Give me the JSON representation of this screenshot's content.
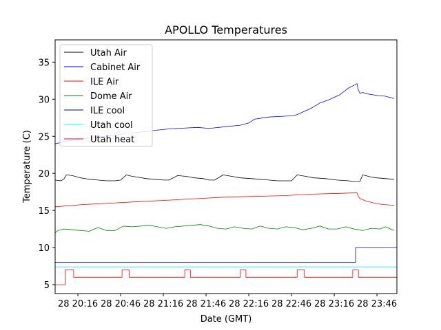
{
  "chart_data": {
    "type": "line",
    "title": "APOLLO Temperatures",
    "xlabel": "Date (GMT)",
    "ylabel": "Temperature (C)",
    "xlim": [
      0,
      240
    ],
    "ylim": [
      3.8,
      38.0
    ],
    "x_unit": "minutes since 28 20:00 GMT",
    "x_ticks": [
      {
        "value": 16,
        "label": "28 20:16"
      },
      {
        "value": 46,
        "label": "28 20:46"
      },
      {
        "value": 76,
        "label": "28 21:16"
      },
      {
        "value": 106,
        "label": "28 21:46"
      },
      {
        "value": 136,
        "label": "28 22:16"
      },
      {
        "value": 166,
        "label": "28 22:46"
      },
      {
        "value": 196,
        "label": "28 23:16"
      },
      {
        "value": 226,
        "label": "28 23:46"
      }
    ],
    "y_ticks": [
      {
        "value": 5,
        "label": "5"
      },
      {
        "value": 10,
        "label": "10"
      },
      {
        "value": 15,
        "label": "15"
      },
      {
        "value": 20,
        "label": "20"
      },
      {
        "value": 25,
        "label": "25"
      },
      {
        "value": 30,
        "label": "30"
      },
      {
        "value": 35,
        "label": "35"
      }
    ],
    "legend_position": "top-left",
    "series": [
      {
        "name": "Utah Air",
        "color": "#000000",
        "x": [
          0,
          4,
          6,
          8,
          12,
          18,
          24,
          30,
          36,
          42,
          46,
          50,
          54,
          58,
          64,
          70,
          76,
          80,
          86,
          92,
          98,
          104,
          108,
          112,
          118,
          124,
          130,
          138,
          144,
          150,
          156,
          162,
          166,
          170,
          176,
          182,
          190,
          198,
          206,
          210,
          214,
          216,
          218,
          222,
          226,
          232,
          238
        ],
        "y": [
          19.1,
          19.0,
          19.2,
          19.8,
          19.7,
          19.4,
          19.2,
          19.1,
          19.0,
          19.0,
          19.1,
          19.8,
          19.6,
          19.5,
          19.3,
          19.2,
          19.1,
          19.1,
          19.7,
          19.6,
          19.4,
          19.3,
          19.1,
          19.1,
          19.8,
          19.6,
          19.4,
          19.3,
          19.2,
          19.1,
          19.0,
          19.0,
          19.0,
          19.8,
          19.6,
          19.4,
          19.3,
          19.1,
          19.0,
          18.9,
          18.9,
          19.8,
          19.7,
          19.5,
          19.4,
          19.3,
          19.2
        ]
      },
      {
        "name": "Cabinet Air",
        "color": "#0000ff",
        "x": [
          0,
          10,
          20,
          30,
          40,
          50,
          56,
          62,
          70,
          80,
          90,
          100,
          106,
          110,
          120,
          130,
          136,
          140,
          150,
          160,
          168,
          172,
          180,
          186,
          192,
          200,
          206,
          210,
          212,
          213,
          214,
          216,
          220,
          226,
          232,
          238
        ],
        "y": [
          24.0,
          24.4,
          24.7,
          24.9,
          25.1,
          25.4,
          25.5,
          25.6,
          25.8,
          26.0,
          26.1,
          26.2,
          26.1,
          26.1,
          26.3,
          26.5,
          26.8,
          27.3,
          27.6,
          27.7,
          27.8,
          28.1,
          28.8,
          29.5,
          29.9,
          30.6,
          31.5,
          31.9,
          32.1,
          31.2,
          30.8,
          30.9,
          30.7,
          30.5,
          30.4,
          30.1
        ]
      },
      {
        "name": "ILE Air",
        "color": "#ff0000",
        "x": [
          0,
          20,
          40,
          60,
          80,
          100,
          120,
          140,
          160,
          180,
          200,
          212,
          213,
          214,
          218,
          224,
          230,
          238
        ],
        "y": [
          15.5,
          15.8,
          16.0,
          16.2,
          16.4,
          16.6,
          16.8,
          16.9,
          17.0,
          17.2,
          17.3,
          17.4,
          16.9,
          16.6,
          16.3,
          16.0,
          15.8,
          15.7
        ]
      },
      {
        "name": "Dome Air",
        "color": "#008000",
        "x": [
          0,
          2,
          6,
          12,
          18,
          24,
          30,
          36,
          42,
          48,
          54,
          60,
          66,
          72,
          78,
          84,
          90,
          96,
          102,
          108,
          114,
          120,
          126,
          132,
          138,
          144,
          150,
          156,
          162,
          168,
          174,
          180,
          186,
          192,
          198,
          204,
          210,
          216,
          222,
          228,
          232,
          238
        ],
        "y": [
          12.0,
          12.3,
          12.5,
          12.4,
          12.3,
          12.2,
          12.7,
          12.3,
          12.3,
          12.9,
          12.8,
          12.9,
          13.0,
          12.8,
          12.6,
          12.8,
          12.9,
          13.0,
          13.1,
          12.9,
          12.6,
          12.5,
          12.8,
          12.6,
          12.5,
          12.9,
          12.6,
          12.5,
          12.8,
          12.7,
          12.4,
          12.6,
          12.9,
          12.5,
          12.5,
          12.8,
          12.5,
          12.3,
          12.6,
          12.5,
          12.8,
          12.3
        ]
      },
      {
        "name": "ILE cool",
        "color": "#00008b",
        "x": [
          0,
          211,
          211,
          240
        ],
        "y": [
          8.0,
          8.0,
          10.0,
          10.0
        ]
      },
      {
        "name": "Utah cool",
        "color": "#00ffff",
        "x": [
          0,
          240
        ],
        "y": [
          7.4,
          7.4
        ]
      },
      {
        "name": "Utah heat",
        "color": "#ff0000",
        "x": [
          0,
          7,
          7,
          13,
          13,
          47,
          47,
          52,
          52,
          91,
          91,
          95,
          95,
          130,
          130,
          134,
          134,
          170,
          170,
          175,
          175,
          209,
          209,
          213,
          213,
          240
        ],
        "y": [
          5.0,
          5.0,
          7.0,
          7.0,
          6.0,
          6.0,
          7.0,
          7.0,
          6.0,
          6.0,
          7.0,
          7.0,
          6.0,
          6.0,
          7.0,
          7.0,
          6.0,
          6.0,
          7.0,
          7.0,
          6.0,
          6.0,
          7.0,
          7.0,
          6.0,
          6.0
        ]
      }
    ]
  }
}
